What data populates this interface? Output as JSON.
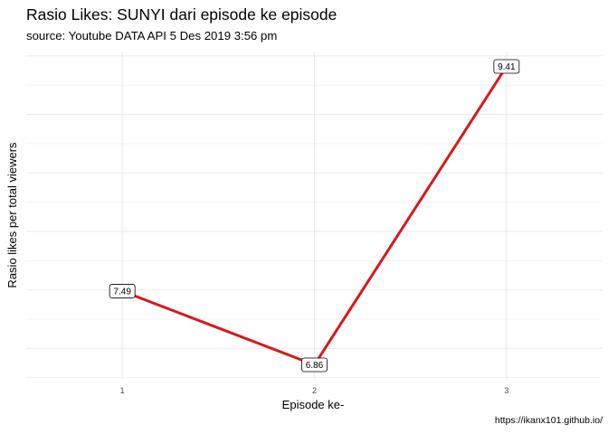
{
  "chart_data": {
    "type": "line",
    "title": "Rasio Likes: SUNYI dari episode ke episode",
    "subtitle": "source: Youtube DATA API 5 Des 2019 3:56 pm",
    "caption": "https://ikanx101.github.io/",
    "xlabel": "Episode ke-",
    "ylabel": "Rasio likes per total viewers",
    "x": [
      1,
      2,
      3
    ],
    "x_tick_labels": [
      "1",
      "2",
      "3"
    ],
    "xlim": [
      0.5,
      3.5
    ],
    "ylim": [
      6.74,
      9.53
    ],
    "show_y_tick_labels": false,
    "grid": true,
    "legend": "none",
    "series": [
      {
        "values": [
          7.49,
          6.86,
          9.41
        ],
        "labels": [
          "7.49",
          "6.86",
          "9.41"
        ],
        "color": "#d7191c"
      }
    ]
  }
}
